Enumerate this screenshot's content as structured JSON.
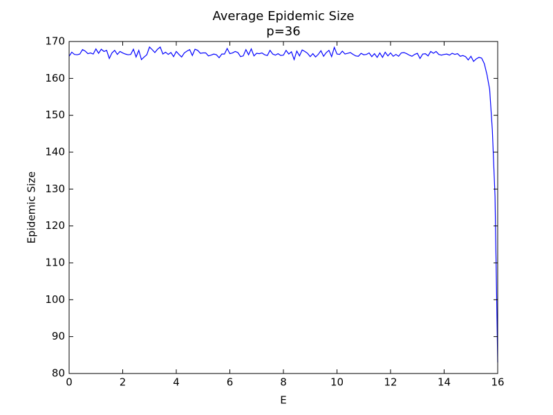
{
  "chart_data": {
    "type": "line",
    "title": "Average Epidemic Size",
    "subtitle": "p=36",
    "x_label": "E",
    "y_label": "Epidemic Size",
    "xlim": [
      0,
      16
    ],
    "ylim": [
      80,
      170
    ],
    "xticks": [
      0,
      2,
      4,
      6,
      8,
      10,
      12,
      14,
      16
    ],
    "yticks": [
      80,
      90,
      100,
      110,
      120,
      130,
      140,
      150,
      160,
      170
    ],
    "x": [
      0.0,
      0.1,
      0.2,
      0.3,
      0.4,
      0.5,
      0.6,
      0.7,
      0.8,
      0.9,
      1.0,
      1.1,
      1.2,
      1.3,
      1.4,
      1.5,
      1.6,
      1.7,
      1.8,
      1.9,
      2.0,
      2.1,
      2.2,
      2.3,
      2.4,
      2.5,
      2.6,
      2.7,
      2.8,
      2.9,
      3.0,
      3.1,
      3.2,
      3.3,
      3.4,
      3.5,
      3.6,
      3.7,
      3.8,
      3.9,
      4.0,
      4.1,
      4.2,
      4.3,
      4.4,
      4.5,
      4.6,
      4.7,
      4.8,
      4.9,
      5.0,
      5.1,
      5.2,
      5.3,
      5.4,
      5.5,
      5.6,
      5.7,
      5.8,
      5.9,
      6.0,
      6.1,
      6.2,
      6.3,
      6.4,
      6.5,
      6.6,
      6.7,
      6.8,
      6.9,
      7.0,
      7.1,
      7.2,
      7.3,
      7.4,
      7.5,
      7.6,
      7.7,
      7.8,
      7.9,
      8.0,
      8.1,
      8.2,
      8.3,
      8.4,
      8.5,
      8.6,
      8.7,
      8.8,
      8.9,
      9.0,
      9.1,
      9.2,
      9.3,
      9.4,
      9.5,
      9.6,
      9.7,
      9.8,
      9.9,
      10.0,
      10.1,
      10.2,
      10.3,
      10.4,
      10.5,
      10.6,
      10.7,
      10.8,
      10.9,
      11.0,
      11.1,
      11.2,
      11.3,
      11.4,
      11.5,
      11.6,
      11.7,
      11.8,
      11.9,
      12.0,
      12.1,
      12.2,
      12.3,
      12.4,
      12.5,
      12.6,
      12.7,
      12.8,
      12.9,
      13.0,
      13.1,
      13.2,
      13.3,
      13.4,
      13.5,
      13.6,
      13.7,
      13.8,
      13.9,
      14.0,
      14.1,
      14.2,
      14.3,
      14.4,
      14.5,
      14.6,
      14.7,
      14.8,
      14.9,
      15.0,
      15.1,
      15.2,
      15.3,
      15.4,
      15.5,
      15.6,
      15.7,
      15.8,
      15.9,
      16.0
    ],
    "series": [
      {
        "color": "#0000ff",
        "values": [
          166,
          167.1,
          166.5,
          166.4,
          166.6,
          167.8,
          167.4,
          166.7,
          166.9,
          166.6,
          168,
          166.8,
          167.9,
          167.3,
          167.6,
          165.4,
          166.9,
          167.6,
          166.5,
          167.3,
          166.9,
          166.6,
          166.4,
          166.5,
          167.9,
          165.8,
          167.6,
          165.1,
          165.8,
          166.4,
          168.5,
          167.8,
          167.0,
          167.9,
          168.5,
          166.6,
          167.1,
          166.5,
          167.0,
          165.9,
          167.3,
          166.5,
          165.8,
          166.9,
          167.4,
          167.8,
          166.2,
          167.9,
          167.6,
          166.8,
          166.9,
          166.9,
          166.1,
          166.3,
          166.6,
          166.4,
          165.6,
          166.6,
          166.6,
          168.1,
          166.7,
          166.9,
          167.3,
          167.0,
          165.9,
          166.1,
          167.8,
          166.4,
          168.0,
          166.1,
          166.8,
          166.7,
          166.9,
          166.4,
          166.2,
          167.6,
          166.6,
          166.3,
          166.7,
          166.2,
          166.3,
          167.6,
          166.6,
          167.2,
          165.1,
          167.4,
          166.1,
          167.7,
          167.3,
          166.8,
          165.9,
          166.7,
          165.8,
          166.5,
          167.5,
          166.0,
          167.0,
          167.6,
          165.9,
          168.4,
          166.6,
          166.5,
          167.4,
          166.6,
          166.8,
          167.0,
          166.5,
          166.1,
          166.0,
          166.8,
          166.4,
          166.5,
          166.9,
          165.9,
          166.7,
          165.7,
          166.9,
          165.7,
          167.1,
          166.1,
          166.9,
          166.0,
          166.5,
          166.0,
          166.9,
          167.0,
          166.7,
          166.3,
          166.0,
          166.5,
          166.8,
          165.4,
          166.6,
          166.7,
          166.1,
          167.3,
          166.8,
          167.3,
          166.5,
          166.3,
          166.5,
          166.6,
          166.3,
          166.8,
          166.5,
          166.7,
          166.0,
          166.2,
          165.9,
          165.0,
          166,
          164.6,
          165.3,
          165.7,
          165.5,
          164,
          161,
          157,
          146,
          128,
          83
        ]
      }
    ]
  }
}
